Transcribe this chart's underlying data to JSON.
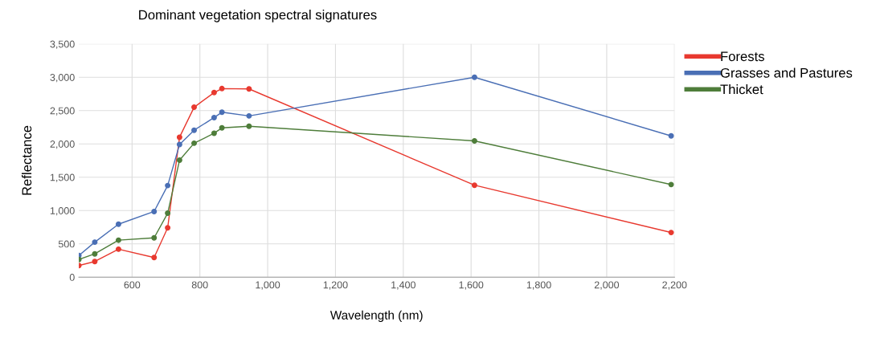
{
  "chart_data": {
    "type": "line",
    "title": "Dominant vegetation spectral signatures",
    "xlabel": "Wavelength (nm)",
    "ylabel": "Reflectance",
    "x": [
      443,
      490,
      560,
      665,
      705,
      740,
      783,
      842,
      865,
      945,
      1610,
      2190
    ],
    "series": [
      {
        "name": "Forests",
        "color": "#e8392f",
        "values": [
          175,
          235,
          420,
          295,
          740,
          2100,
          2550,
          2770,
          2830,
          2825,
          1380,
          670
        ]
      },
      {
        "name": "Grasses and Pastures",
        "color": "#4a6fb5",
        "values": [
          325,
          525,
          795,
          985,
          1375,
          1990,
          2205,
          2395,
          2475,
          2420,
          3000,
          2120
        ]
      },
      {
        "name": "Thicket",
        "color": "#4e7d3a",
        "values": [
          265,
          350,
          555,
          590,
          960,
          1755,
          2010,
          2160,
          2240,
          2265,
          2045,
          1390
        ]
      }
    ],
    "xlim": [
      443,
      2200
    ],
    "xticks": [
      {
        "value": 600,
        "label": "600"
      },
      {
        "value": 800,
        "label": "800"
      },
      {
        "value": 1000,
        "label": "1,000"
      },
      {
        "value": 1200,
        "label": "1,200"
      },
      {
        "value": 1400,
        "label": "1,400"
      },
      {
        "value": 1600,
        "label": "1,600"
      },
      {
        "value": 1800,
        "label": "1,800"
      },
      {
        "value": 2000,
        "label": "2,000"
      },
      {
        "value": 2200,
        "label": "2,200"
      }
    ],
    "ylim": [
      0,
      3500
    ],
    "yticks": [
      0,
      {
        "value": 500,
        "label": "500"
      },
      {
        "value": 1000,
        "label": "1,000"
      },
      {
        "value": 1500,
        "label": "1,500"
      },
      {
        "value": 2000,
        "label": "2,000"
      },
      {
        "value": 2500,
        "label": "2,500"
      },
      {
        "value": 3000,
        "label": "3,000"
      },
      {
        "value": 3500,
        "label": "3,500"
      }
    ],
    "grid": true,
    "legend": "right",
    "marker": "circle",
    "line_style": "solid"
  }
}
